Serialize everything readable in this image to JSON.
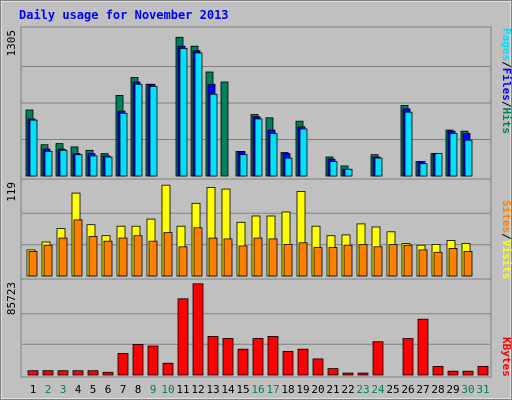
{
  "chart_data": [
    {
      "type": "bar",
      "title": "Daily usage for November 2013",
      "ylabel_left": "1305",
      "legend": [
        "Pages",
        "Files",
        "Hits"
      ],
      "legend_separators": [
        "/",
        "/"
      ],
      "colors": {
        "hits": "#00805c",
        "files": "#0000ff",
        "pages": "#00e0ff"
      },
      "ylim": [
        0,
        1305
      ],
      "categories": [
        "1",
        "2",
        "3",
        "4",
        "5",
        "6",
        "7",
        "8",
        "9",
        "10",
        "11",
        "12",
        "13",
        "14",
        "15",
        "16",
        "17",
        "18",
        "19",
        "20",
        "21",
        "22",
        "23",
        "24",
        "25",
        "26",
        "27",
        "28",
        "29",
        "30",
        "31"
      ],
      "series": [
        {
          "name": "Hits",
          "values": [
            590,
            280,
            290,
            260,
            230,
            200,
            720,
            880,
            820,
            0,
            1240,
            1160,
            930,
            840,
            220,
            550,
            520,
            210,
            490,
            0,
            170,
            90,
            0,
            190,
            0,
            630,
            130,
            200,
            410,
            400,
            0
          ]
        },
        {
          "name": "Files",
          "values": [
            510,
            240,
            240,
            200,
            200,
            180,
            580,
            840,
            820,
            0,
            1160,
            1120,
            820,
            0,
            220,
            530,
            410,
            200,
            440,
            0,
            150,
            60,
            0,
            170,
            0,
            600,
            130,
            200,
            400,
            380,
            0
          ]
        },
        {
          "name": "Pages",
          "values": [
            500,
            220,
            230,
            190,
            180,
            170,
            560,
            820,
            800,
            0,
            1140,
            1100,
            730,
            0,
            190,
            510,
            380,
            160,
            420,
            0,
            130,
            60,
            0,
            160,
            0,
            570,
            110,
            200,
            380,
            320,
            0
          ]
        }
      ]
    },
    {
      "type": "bar",
      "ylabel_left": "119",
      "legend": [
        "Sites",
        "Visits"
      ],
      "legend_separators": [
        "/"
      ],
      "colors": {
        "visits": "#ffff00",
        "sites": "#ff8000"
      },
      "ylim": [
        0,
        119
      ],
      "categories": [
        "1",
        "2",
        "3",
        "4",
        "5",
        "6",
        "7",
        "8",
        "9",
        "10",
        "11",
        "12",
        "13",
        "14",
        "15",
        "16",
        "17",
        "18",
        "19",
        "20",
        "21",
        "22",
        "23",
        "24",
        "25",
        "26",
        "27",
        "28",
        "29",
        "30",
        "31"
      ],
      "series": [
        {
          "name": "Visits",
          "values": [
            33,
            43,
            60,
            105,
            65,
            51,
            63,
            63,
            72,
            115,
            63,
            92,
            112,
            110,
            68,
            76,
            76,
            81,
            107,
            63,
            51,
            52,
            66,
            62,
            56,
            41,
            39,
            40,
            45,
            41,
            0
          ]
        },
        {
          "name": "Sites",
          "values": [
            31,
            39,
            48,
            71,
            50,
            44,
            48,
            51,
            44,
            55,
            37,
            61,
            48,
            47,
            38,
            48,
            47,
            40,
            42,
            36,
            36,
            39,
            40,
            37,
            40,
            39,
            33,
            30,
            35,
            31,
            0
          ]
        }
      ]
    },
    {
      "type": "bar",
      "ylabel_left": "85723",
      "legend": [
        "KBytes"
      ],
      "colors": {
        "kbytes": "#ff0000"
      },
      "ylim": [
        0,
        85723
      ],
      "categories": [
        "1",
        "2",
        "3",
        "4",
        "5",
        "6",
        "7",
        "8",
        "9",
        "10",
        "11",
        "12",
        "13",
        "14",
        "15",
        "16",
        "17",
        "18",
        "19",
        "20",
        "21",
        "22",
        "23",
        "24",
        "25",
        "26",
        "27",
        "28",
        "29",
        "30",
        "31"
      ],
      "weekend_categories": [
        "2",
        "3",
        "9",
        "10",
        "16",
        "17",
        "23",
        "24",
        "30",
        "31"
      ],
      "series": [
        {
          "name": "KBytes",
          "values": [
            4000,
            4000,
            4000,
            4000,
            4000,
            2500,
            20000,
            28500,
            27000,
            11000,
            71000,
            85000,
            36000,
            34000,
            24000,
            34000,
            36000,
            22000,
            24000,
            15000,
            6000,
            1800,
            1800,
            31000,
            0,
            34000,
            52000,
            8000,
            3500,
            3500,
            8000
          ]
        }
      ]
    }
  ]
}
